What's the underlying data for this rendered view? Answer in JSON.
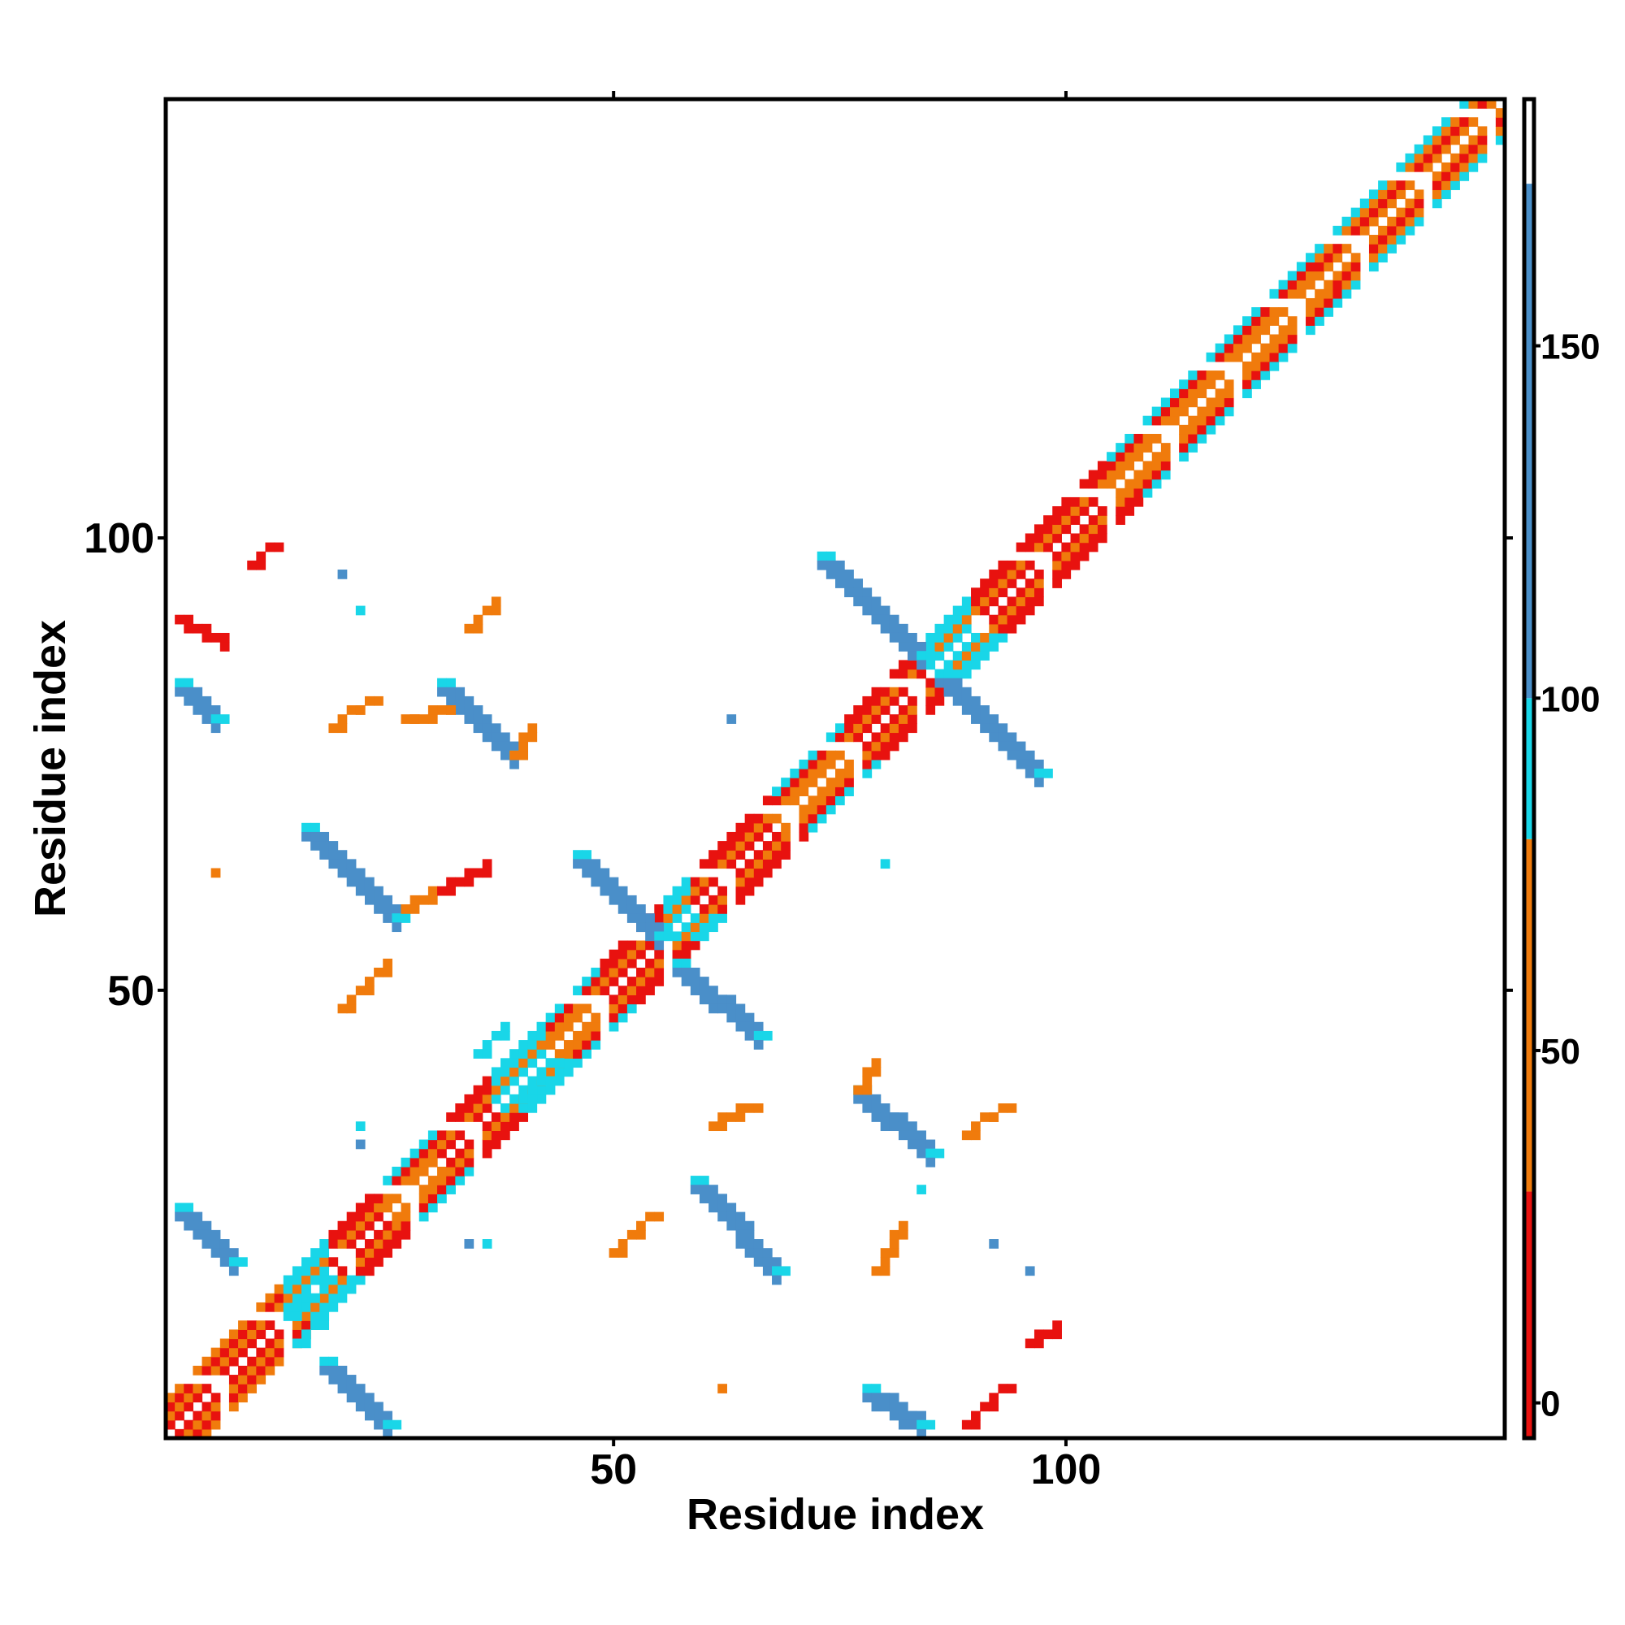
{
  "chart_data": {
    "type": "heatmap",
    "title": "",
    "xlabel": "Residue index",
    "ylabel": "Residue index",
    "xlim": [
      0.5,
      148.5
    ],
    "ylim": [
      0.5,
      148.5
    ],
    "x_ticks": [
      50,
      100
    ],
    "y_ticks": [
      50,
      100
    ],
    "colorbar": {
      "ticks": [
        0,
        50,
        100,
        150
      ],
      "range": [
        -5,
        185
      ],
      "segments": [
        {
          "from": -5,
          "to": 30,
          "color": "#e8120f"
        },
        {
          "from": 30,
          "to": 80,
          "color": "#f07b0c"
        },
        {
          "from": 80,
          "to": 100,
          "color": "#19d6e8"
        },
        {
          "from": 100,
          "to": 173,
          "color": "#4a8fc9"
        },
        {
          "from": 173,
          "to": 185,
          "color": "#ffffff"
        }
      ]
    },
    "diagonal_band": [
      {
        "from": 1,
        "to": 14,
        "class": "red-orange"
      },
      {
        "from": 14,
        "to": 19,
        "class": "cyan"
      },
      {
        "from": 19,
        "to": 25,
        "class": "red"
      },
      {
        "from": 25,
        "to": 31,
        "class": "orange-cyan"
      },
      {
        "from": 31,
        "to": 37,
        "class": "red"
      },
      {
        "from": 37,
        "to": 43,
        "class": "cyan"
      },
      {
        "from": 43,
        "to": 49,
        "class": "orange-cyan"
      },
      {
        "from": 49,
        "to": 56,
        "class": "red"
      },
      {
        "from": 56,
        "to": 59,
        "class": "cyan"
      },
      {
        "from": 59,
        "to": 68,
        "class": "red"
      },
      {
        "from": 68,
        "to": 76,
        "class": "orange-cyan"
      },
      {
        "from": 76,
        "to": 85,
        "class": "red"
      },
      {
        "from": 85,
        "to": 90,
        "class": "cyan"
      },
      {
        "from": 90,
        "to": 105,
        "class": "red"
      },
      {
        "from": 105,
        "to": 128,
        "class": "orange-cyan"
      },
      {
        "from": 128,
        "to": 148,
        "class": "red-orange-cyan"
      }
    ],
    "contact_segments": [
      {
        "x": [
          2,
          8
        ],
        "y": [
          26,
          20
        ],
        "value": 140
      },
      {
        "x": [
          14,
          17
        ],
        "y": [
          14,
          18
        ],
        "value": 90
      },
      {
        "x": [
          18,
          25
        ],
        "y": [
          9,
          2
        ],
        "value": 140
      },
      {
        "x": [
          15,
          18
        ],
        "y": [
          11,
          14
        ],
        "value": 90
      },
      {
        "x": [
          35,
          38
        ],
        "y": [
          43,
          46
        ],
        "value": 90
      },
      {
        "x": [
          40,
          43
        ],
        "y": [
          38,
          42
        ],
        "value": 90
      },
      {
        "x": [
          16,
          26
        ],
        "y": [
          68,
          58
        ],
        "value": 140
      },
      {
        "x": [
          31,
          39
        ],
        "y": [
          84,
          76
        ],
        "value": 140
      },
      {
        "x": [
          46,
          55
        ],
        "y": [
          65,
          56
        ],
        "value": 140
      },
      {
        "x": [
          57,
          66
        ],
        "y": [
          53,
          45
        ],
        "value": 140
      },
      {
        "x": [
          73,
          84
        ],
        "y": [
          98,
          87
        ],
        "value": 140
      },
      {
        "x": [
          86,
          97
        ],
        "y": [
          85,
          74
        ],
        "value": 140
      },
      {
        "x": [
          59,
          68
        ],
        "y": [
          29,
          19
        ],
        "value": 140
      },
      {
        "x": [
          77,
          85
        ],
        "y": [
          39,
          32
        ],
        "value": 140
      },
      {
        "x": [
          78,
          84
        ],
        "y": [
          6,
          2
        ],
        "value": 140
      },
      {
        "x": [
          2,
          6
        ],
        "y": [
          84,
          80
        ],
        "value": 140
      },
      {
        "x": [
          2,
          7
        ],
        "y": [
          91,
          88
        ],
        "value": 5
      },
      {
        "x": [
          10,
          12
        ],
        "y": [
          97,
          99
        ],
        "value": 5
      },
      {
        "x": [
          19,
          23
        ],
        "y": [
          79,
          82
        ],
        "value": 45
      },
      {
        "x": [
          27,
          32
        ],
        "y": [
          80,
          81
        ],
        "value": 60
      },
      {
        "x": [
          34,
          37
        ],
        "y": [
          90,
          93
        ],
        "value": 45
      },
      {
        "x": [
          39,
          41
        ],
        "y": [
          76,
          79
        ],
        "value": 60
      },
      {
        "x": [
          27,
          30
        ],
        "y": [
          59,
          61
        ],
        "value": 45
      },
      {
        "x": [
          31,
          36
        ],
        "y": [
          61,
          64
        ],
        "value": 20
      },
      {
        "x": [
          20,
          25
        ],
        "y": [
          48,
          53
        ],
        "value": 30
      },
      {
        "x": [
          61,
          65
        ],
        "y": [
          35,
          37
        ],
        "value": 45
      },
      {
        "x": [
          50,
          54
        ],
        "y": [
          21,
          25
        ],
        "value": 45
      },
      {
        "x": [
          77,
          79
        ],
        "y": [
          39,
          42
        ],
        "value": 60
      },
      {
        "x": [
          79,
          82
        ],
        "y": [
          19,
          24
        ],
        "value": 45
      },
      {
        "x": [
          89,
          93
        ],
        "y": [
          34,
          37
        ],
        "value": 45
      },
      {
        "x": [
          89,
          93
        ],
        "y": [
          2,
          6
        ],
        "value": 5
      },
      {
        "x": [
          96,
          99
        ],
        "y": [
          11,
          13
        ],
        "value": 20
      }
    ],
    "isolated_points": [
      {
        "x": 6,
        "y": 63,
        "value": 40
      },
      {
        "x": 20,
        "y": 96,
        "value": 140
      },
      {
        "x": 22,
        "y": 92,
        "value": 95
      },
      {
        "x": 22,
        "y": 35,
        "value": 95
      },
      {
        "x": 22,
        "y": 33,
        "value": 140
      },
      {
        "x": 34,
        "y": 22,
        "value": 140
      },
      {
        "x": 36,
        "y": 22,
        "value": 95
      },
      {
        "x": 62,
        "y": 6,
        "value": 40
      },
      {
        "x": 63,
        "y": 80,
        "value": 140
      },
      {
        "x": 80,
        "y": 64,
        "value": 95
      },
      {
        "x": 92,
        "y": 22,
        "value": 140
      },
      {
        "x": 96,
        "y": 19,
        "value": 140
      },
      {
        "x": 84,
        "y": 28,
        "value": 95
      }
    ]
  }
}
